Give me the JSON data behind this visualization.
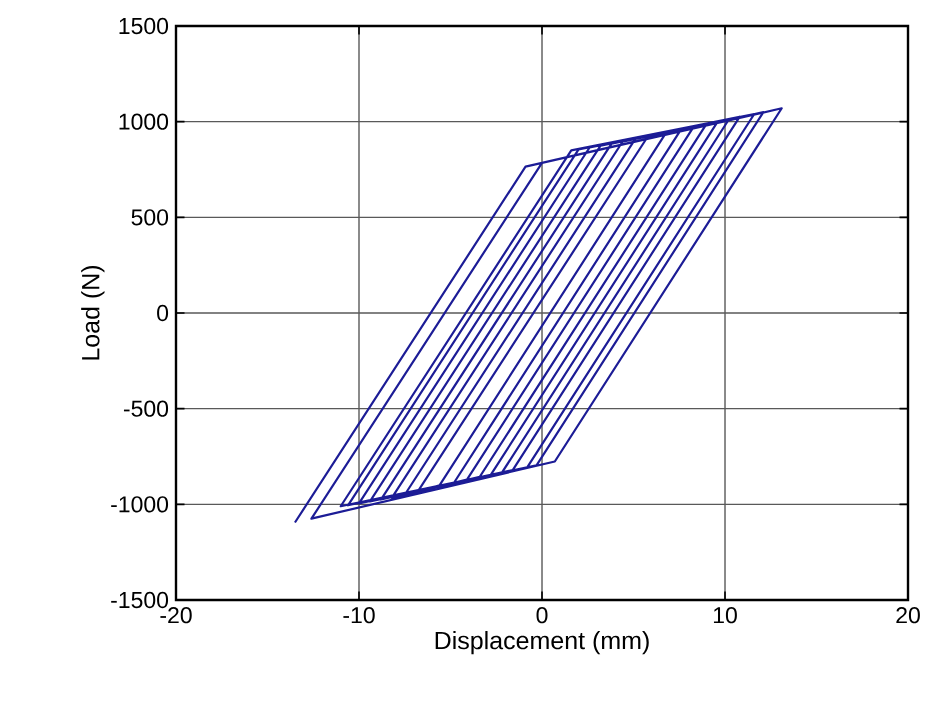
{
  "chart_data": {
    "type": "line",
    "xlabel": "Displacement (mm)",
    "ylabel": "Load (N)",
    "xlim": [
      -20,
      20
    ],
    "xticks": [
      -20,
      -10,
      0,
      10,
      20
    ],
    "ylim": [
      -1500,
      1500
    ],
    "yticks": [
      -1500,
      -1000,
      -500,
      0,
      500,
      1000,
      1500
    ],
    "grid": true,
    "marker": "none",
    "line_style": "solid",
    "series": [
      {
        "color": "#1c1c96",
        "x": [
          -13.5,
          -0.9,
          13.1,
          0.7,
          -12.6,
          0.0,
          12.1,
          -0.3,
          -11.0,
          1.6,
          11.6,
          -0.8,
          -10.6,
          2.0,
          10.8,
          -1.6,
          -10.0,
          2.6,
          10.2,
          -2.2,
          -9.4,
          3.2,
          9.6,
          -2.8,
          -8.8,
          3.8,
          9.0,
          -3.4,
          -8.2,
          4.4,
          8.3,
          -4.1,
          -7.5,
          5.1,
          7.6,
          -4.8,
          -6.8,
          5.8,
          6.8,
          -5.6,
          -6.8
        ],
        "values": [
          -1095,
          765,
          1070,
          -776,
          -1075,
          785,
          1050,
          -796,
          -1010,
          850,
          1040,
          -806,
          -1005,
          855,
          1025,
          -821,
          -995,
          865,
          1010,
          -836,
          -985,
          875,
          1000,
          -846,
          -975,
          885,
          990,
          -856,
          -965,
          895,
          975,
          -871,
          -950,
          910,
          960,
          -886,
          -935,
          925,
          945,
          -901,
          -935
        ]
      }
    ]
  }
}
